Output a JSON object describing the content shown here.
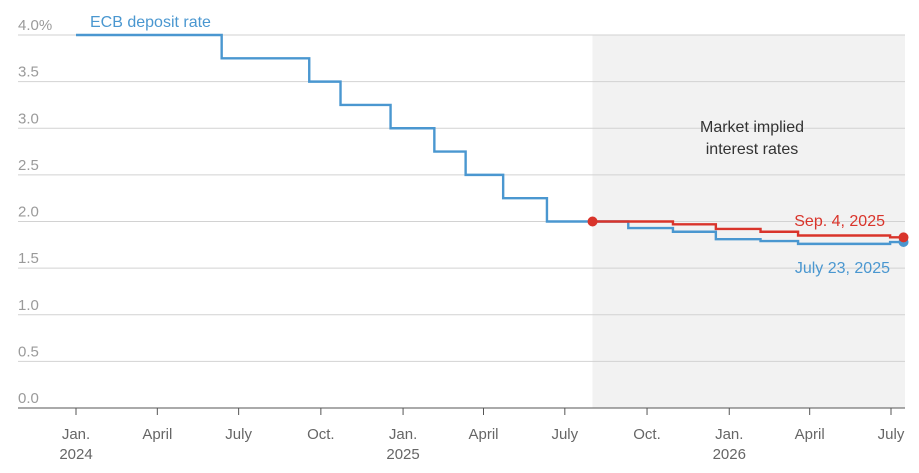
{
  "chart_data": {
    "type": "line",
    "ylim": [
      0,
      4.0
    ],
    "y_ticks": [
      {
        "value": 4.0,
        "label": "4.0%"
      },
      {
        "value": 3.5,
        "label": "3.5"
      },
      {
        "value": 3.0,
        "label": "3.0"
      },
      {
        "value": 2.5,
        "label": "2.5"
      },
      {
        "value": 2.0,
        "label": "2.0"
      },
      {
        "value": 1.5,
        "label": "1.5"
      },
      {
        "value": 1.0,
        "label": "1.0"
      },
      {
        "value": 0.5,
        "label": "0.5"
      },
      {
        "value": 0.0,
        "label": "0.0"
      }
    ],
    "x_ticks": [
      {
        "date": "2024-01-01",
        "label": "Jan.",
        "year": "2024"
      },
      {
        "date": "2024-04-01",
        "label": "April",
        "year": ""
      },
      {
        "date": "2024-07-01",
        "label": "July",
        "year": ""
      },
      {
        "date": "2024-10-01",
        "label": "Oct.",
        "year": ""
      },
      {
        "date": "2025-01-01",
        "label": "Jan.",
        "year": "2025"
      },
      {
        "date": "2025-04-01",
        "label": "April",
        "year": ""
      },
      {
        "date": "2025-07-01",
        "label": "July",
        "year": ""
      },
      {
        "date": "2025-10-01",
        "label": "Oct.",
        "year": ""
      },
      {
        "date": "2026-01-01",
        "label": "Jan.",
        "year": "2026"
      },
      {
        "date": "2026-04-01",
        "label": "April",
        "year": ""
      },
      {
        "date": "2026-07-01",
        "label": "July",
        "year": ""
      }
    ],
    "shaded_region": {
      "start": "2025-08-01",
      "end": "2026-07-15",
      "label_line1": "Market implied",
      "label_line2": "interest rates"
    },
    "series": [
      {
        "name": "ECB deposit rate",
        "color": "#4a97d0",
        "step": true,
        "points": [
          {
            "date": "2024-01-01",
            "value": 4.0
          },
          {
            "date": "2024-06-12",
            "value": 3.75
          },
          {
            "date": "2024-09-18",
            "value": 3.5
          },
          {
            "date": "2024-10-23",
            "value": 3.25
          },
          {
            "date": "2024-12-18",
            "value": 3.0
          },
          {
            "date": "2025-02-05",
            "value": 2.75
          },
          {
            "date": "2025-03-12",
            "value": 2.5
          },
          {
            "date": "2025-04-23",
            "value": 2.25
          },
          {
            "date": "2025-06-11",
            "value": 2.0
          },
          {
            "date": "2025-08-01",
            "value": 2.0
          }
        ]
      },
      {
        "name": "July 23, 2025",
        "color": "#4a97d0",
        "step": true,
        "points": [
          {
            "date": "2025-08-01",
            "value": 2.0
          },
          {
            "date": "2025-09-10",
            "value": 1.93
          },
          {
            "date": "2025-10-30",
            "value": 1.89
          },
          {
            "date": "2025-12-17",
            "value": 1.81
          },
          {
            "date": "2026-02-05",
            "value": 1.79
          },
          {
            "date": "2026-03-19",
            "value": 1.76
          },
          {
            "date": "2026-06-30",
            "value": 1.78
          },
          {
            "date": "2026-07-15",
            "value": 1.78
          }
        ],
        "end_marker": true
      },
      {
        "name": "Sep. 4, 2025",
        "color": "#d9342b",
        "step": true,
        "points": [
          {
            "date": "2025-08-01",
            "value": 2.0
          },
          {
            "date": "2025-09-10",
            "value": 2.0
          },
          {
            "date": "2025-10-30",
            "value": 1.97
          },
          {
            "date": "2025-12-17",
            "value": 1.92
          },
          {
            "date": "2026-02-05",
            "value": 1.89
          },
          {
            "date": "2026-03-19",
            "value": 1.85
          },
          {
            "date": "2026-06-30",
            "value": 1.83
          },
          {
            "date": "2026-07-15",
            "value": 1.83
          }
        ],
        "start_marker": true,
        "end_marker": true
      }
    ]
  }
}
